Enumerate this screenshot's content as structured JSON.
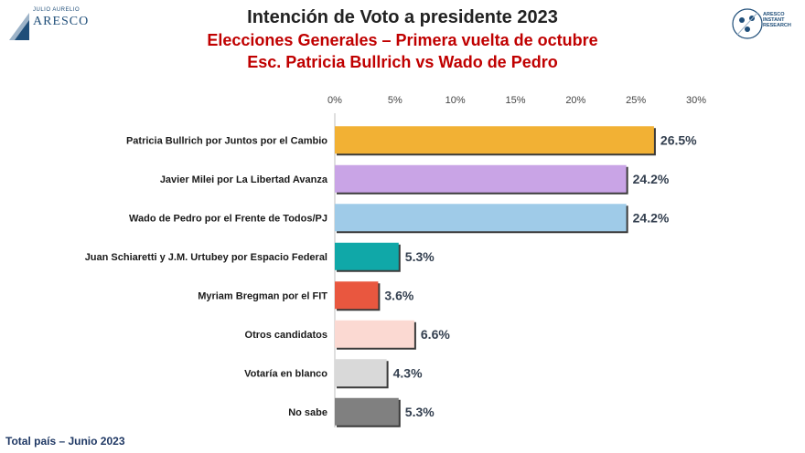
{
  "header": {
    "title": "Intención de Voto a presidente 2023",
    "subtitle1": "Elecciones Generales – Primera vuelta de octubre",
    "subtitle2": "Esc. Patricia Bullrich vs Wado de Pedro"
  },
  "logos": {
    "left_small": "JULIO AURELIO",
    "left_big": "ARESCO",
    "right_lines": [
      "ARESCO",
      "INSTANT",
      "RESEARCH"
    ]
  },
  "footer": "Total país – Junio 2023",
  "colors": {
    "title": "#222222",
    "subtitle": "#c00000",
    "axis": "#444444"
  },
  "chart_data": {
    "type": "bar",
    "orientation": "horizontal",
    "categories": [
      "Patricia Bullrich por Juntos por el Cambio",
      "Javier Milei por La Libertad Avanza",
      "Wado de Pedro por el Frente de Todos/PJ",
      "Juan Schiaretti y J.M. Urtubey por Espacio Federal",
      "Myriam Bregman por el FIT",
      "Otros candidatos",
      "Votaría en blanco",
      "No sabe"
    ],
    "values": [
      26.5,
      24.2,
      24.2,
      5.3,
      3.6,
      6.6,
      4.3,
      5.3
    ],
    "value_labels": [
      "26.5%",
      "24.2%",
      "24.2%",
      "5.3%",
      "3.6%",
      "6.6%",
      "4.3%",
      "5.3%"
    ],
    "bar_colors": [
      "#f2b134",
      "#c9a4e6",
      "#9fcbe8",
      "#10a8a8",
      "#e9573f",
      "#fbd9d2",
      "#d9d9d9",
      "#808080"
    ],
    "xlim": [
      0,
      30
    ],
    "xticks": [
      0,
      5,
      10,
      15,
      20,
      25,
      30
    ],
    "xtick_labels": [
      "0%",
      "5%",
      "10%",
      "15%",
      "20%",
      "25%",
      "30%"
    ],
    "axis_position": "top",
    "grid": false,
    "legend": "none"
  }
}
